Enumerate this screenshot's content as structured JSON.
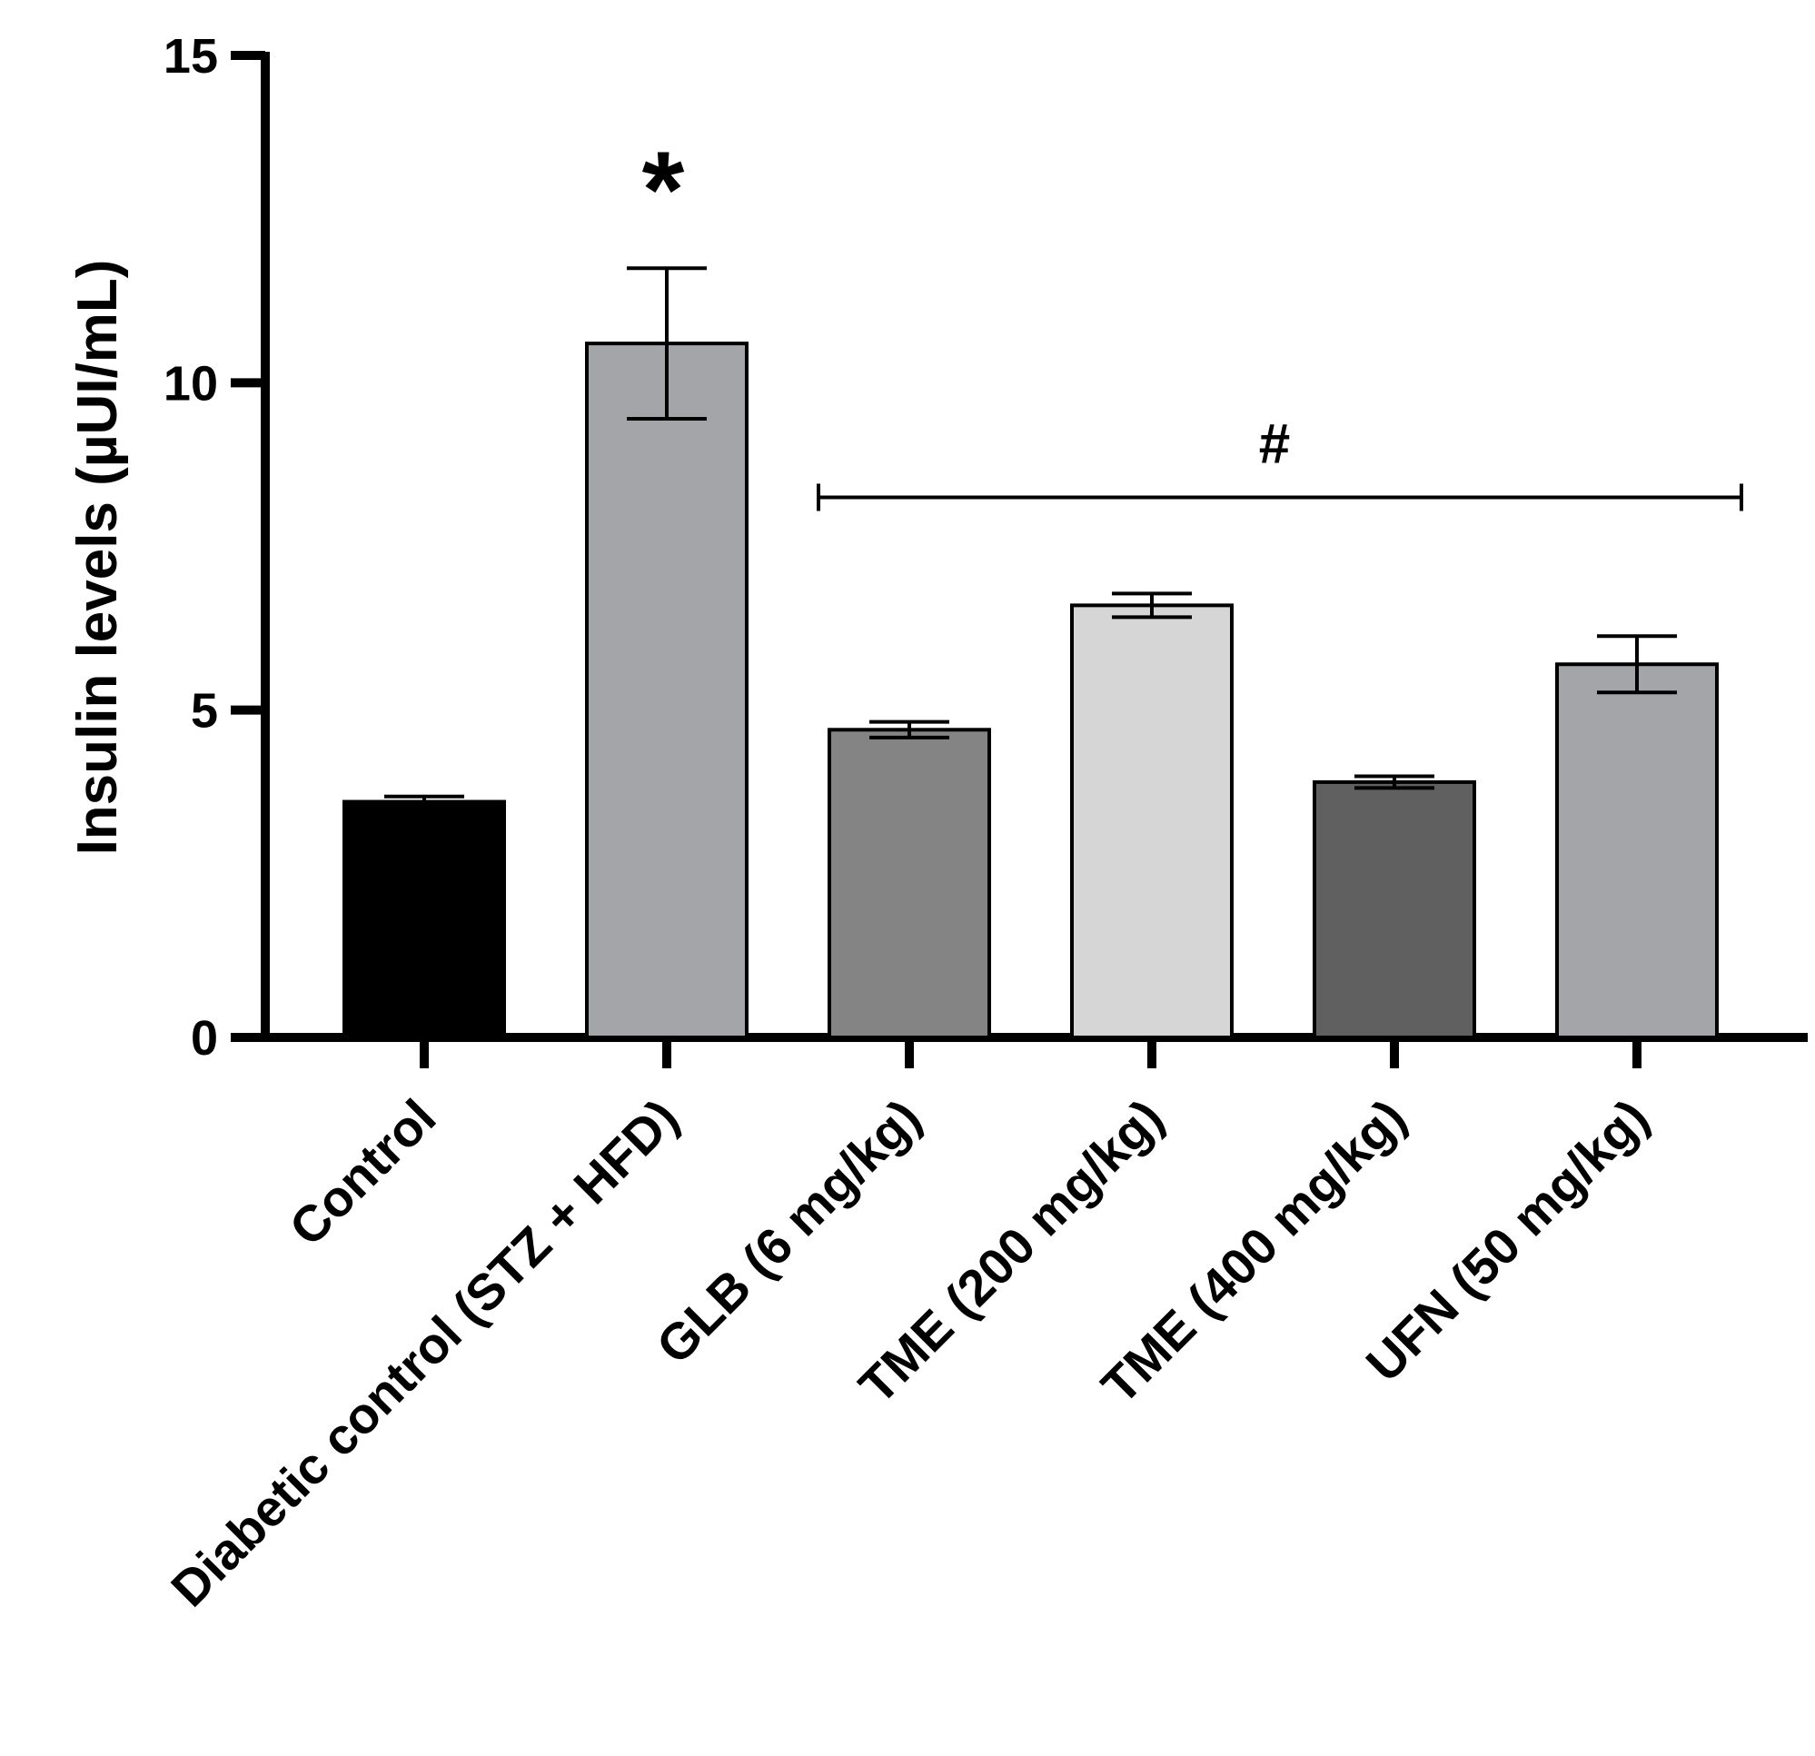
{
  "chart_data": {
    "type": "bar",
    "title": "",
    "xlabel": "",
    "ylabel": "Insulin levels (µUI/mL)",
    "ylim": [
      0,
      15
    ],
    "yticks": [
      0,
      5,
      10,
      15
    ],
    "grid": false,
    "categories": [
      "Control",
      "Diabetic control (STZ + HFD)",
      "GLB (6 mg/kg)",
      "TME (200 mg/kg)",
      "TME (400 mg/kg)",
      "UFN (50 mg/kg)"
    ],
    "values": [
      3.6,
      10.6,
      4.7,
      6.6,
      3.9,
      5.7
    ],
    "errors": [
      0.08,
      1.15,
      0.12,
      0.18,
      0.09,
      0.43
    ],
    "colors": [
      "#000000",
      "#a4a5a9",
      "#848484",
      "#d6d6d6",
      "#606060",
      "#a4a5a9"
    ],
    "annotations": {
      "star": {
        "text": "*",
        "category_index": 1
      },
      "hash": {
        "text": "#",
        "from_index": 2,
        "to_index": 5,
        "level": 8.25
      }
    }
  }
}
